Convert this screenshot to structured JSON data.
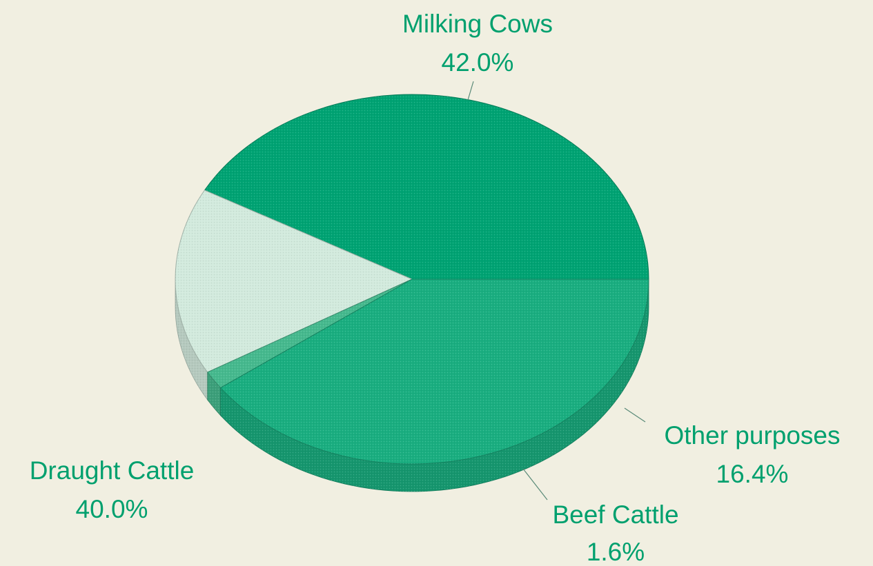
{
  "chart_data": {
    "type": "pie",
    "title": "",
    "legend": "none",
    "label_color": "#00a06e",
    "slices": [
      {
        "name": "Milking Cows",
        "value": 42.0,
        "label": "42.0%",
        "color": "#00a373"
      },
      {
        "name": "Other purposes",
        "value": 16.4,
        "label": "16.4%",
        "color": "#d2eadd"
      },
      {
        "name": "Beef Cattle",
        "value": 1.6,
        "label": "1.6%",
        "color": "#46b98e"
      },
      {
        "name": "Draught Cattle",
        "value": 40.0,
        "label": "40.0%",
        "color": "#1aae80"
      }
    ]
  }
}
